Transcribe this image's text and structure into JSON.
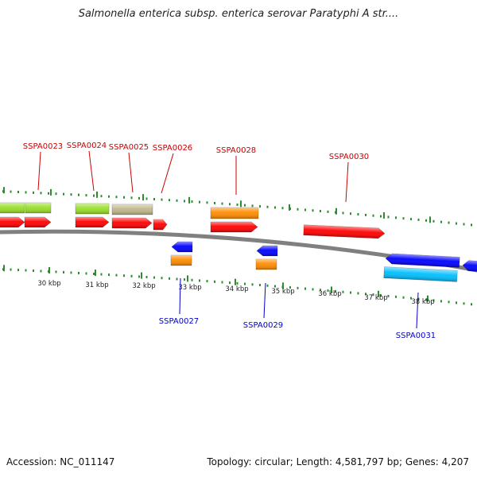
{
  "title": "Salmonella enterica subsp. enterica serovar Paratyphi A str....",
  "footer": {
    "accession": "Accession: NC_011147",
    "summary": "Topology: circular; Length: 4,581,797 bp; Genes: 4,207"
  },
  "colors": {
    "backbone": "#808080",
    "tick": "#2e8b2e",
    "label_forward": "#cc0000",
    "label_reverse": "#0000cc"
  },
  "scale_ticks": [
    {
      "label": "30 kbp"
    },
    {
      "label": "31 kbp"
    },
    {
      "label": "32 kbp"
    },
    {
      "label": "33 kbp"
    },
    {
      "label": "34 kbp"
    },
    {
      "label": "35 kbp"
    },
    {
      "label": "36 kbp"
    },
    {
      "label": "37 kbp"
    },
    {
      "label": "38 kbp"
    }
  ],
  "genes": [
    {
      "label": "SSPA0023",
      "strand": "forward",
      "cog_color": "#9adf2a"
    },
    {
      "label": "SSPA0024",
      "strand": "forward",
      "cog_color": "#9adf2a"
    },
    {
      "label": "SSPA0025",
      "strand": "forward",
      "cog_color": "#c0b88a"
    },
    {
      "label": "SSPA0026",
      "strand": "forward",
      "cog_color": null
    },
    {
      "label": "SSPA0027",
      "strand": "reverse",
      "cog_color": "#ff8c00"
    },
    {
      "label": "SSPA0028",
      "strand": "forward",
      "cog_color": "#ff8c00"
    },
    {
      "label": "SSPA0029",
      "strand": "reverse",
      "cog_color": "#ff8c00"
    },
    {
      "label": "SSPA0030",
      "strand": "forward",
      "cog_color": null
    },
    {
      "label": "SSPA0031",
      "strand": "reverse",
      "cog_color": "#00bfff"
    }
  ]
}
